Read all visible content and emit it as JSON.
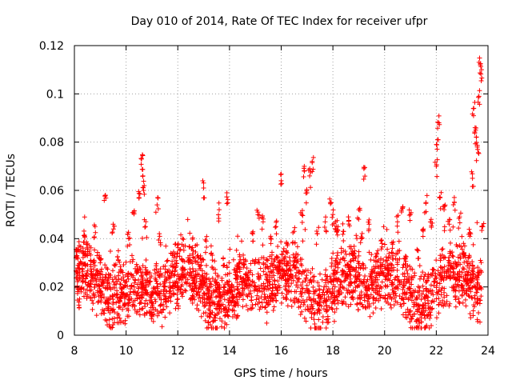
{
  "chart_data": {
    "type": "scatter",
    "title": "Day 010 of 2014, Rate Of TEC Index for receiver ufpr",
    "xlabel": "GPS time / hours",
    "ylabel": "ROTI / TECUs",
    "xlim": [
      8,
      24
    ],
    "ylim": [
      0,
      0.12
    ],
    "x_ticks": [
      "8",
      "10",
      "12",
      "14",
      "16",
      "18",
      "20",
      "22",
      "24"
    ],
    "y_ticks": [
      "0",
      "0.02",
      "0.04",
      "0.06",
      "0.08",
      "0.1",
      "0.12"
    ],
    "grid": true,
    "marker": "+",
    "series_color": "#ff0000",
    "series": [
      {
        "name": "ROTI",
        "x": [
          8.1,
          8.2,
          8.4,
          8.6,
          8.8,
          9.0,
          9.2,
          9.3,
          9.5,
          9.7,
          9.9,
          10.1,
          10.3,
          10.5,
          10.6,
          10.65,
          10.7,
          10.75,
          10.8,
          11.0,
          11.2,
          11.3,
          11.5,
          11.8,
          12.0,
          12.3,
          12.6,
          12.9,
          13.0,
          13.1,
          13.3,
          13.5,
          13.6,
          13.8,
          13.9,
          14.1,
          14.4,
          14.7,
          14.9,
          15.1,
          15.3,
          15.6,
          15.8,
          15.9,
          16.0,
          16.2,
          16.5,
          16.8,
          16.9,
          17.0,
          17.1,
          17.2,
          17.4,
          17.7,
          17.9,
          18.0,
          18.1,
          18.2,
          18.4,
          18.6,
          18.8,
          19.0,
          19.1,
          19.2,
          19.4,
          19.7,
          19.9,
          20.1,
          20.3,
          20.5,
          20.7,
          20.8,
          21.0,
          21.3,
          21.5,
          21.6,
          21.8,
          22.0,
          22.05,
          22.1,
          22.15,
          22.3,
          22.5,
          22.7,
          22.9,
          23.1,
          23.3,
          23.4,
          23.45,
          23.5,
          23.55,
          23.6,
          23.65,
          23.7,
          23.75,
          23.8
        ],
        "y": [
          0.033,
          0.015,
          0.041,
          0.02,
          0.045,
          0.03,
          0.058,
          0.022,
          0.046,
          0.035,
          0.02,
          0.04,
          0.051,
          0.057,
          0.073,
          0.066,
          0.062,
          0.045,
          0.025,
          0.018,
          0.054,
          0.041,
          0.02,
          0.033,
          0.015,
          0.022,
          0.016,
          0.029,
          0.061,
          0.039,
          0.034,
          0.022,
          0.052,
          0.029,
          0.059,
          0.018,
          0.03,
          0.024,
          0.042,
          0.051,
          0.047,
          0.038,
          0.045,
          0.03,
          0.064,
          0.035,
          0.043,
          0.05,
          0.068,
          0.059,
          0.066,
          0.072,
          0.042,
          0.047,
          0.055,
          0.05,
          0.047,
          0.045,
          0.043,
          0.049,
          0.034,
          0.052,
          0.04,
          0.069,
          0.046,
          0.034,
          0.038,
          0.031,
          0.036,
          0.047,
          0.053,
          0.032,
          0.05,
          0.035,
          0.044,
          0.055,
          0.048,
          0.07,
          0.081,
          0.088,
          0.057,
          0.052,
          0.046,
          0.055,
          0.049,
          0.037,
          0.041,
          0.065,
          0.094,
          0.086,
          0.082,
          0.077,
          0.099,
          0.112,
          0.11,
          0.045
        ],
        "dense_band": {
          "description": "bulk of points",
          "baseline_min": 0.005,
          "baseline_max": 0.035,
          "typical": 0.015
        }
      }
    ]
  }
}
